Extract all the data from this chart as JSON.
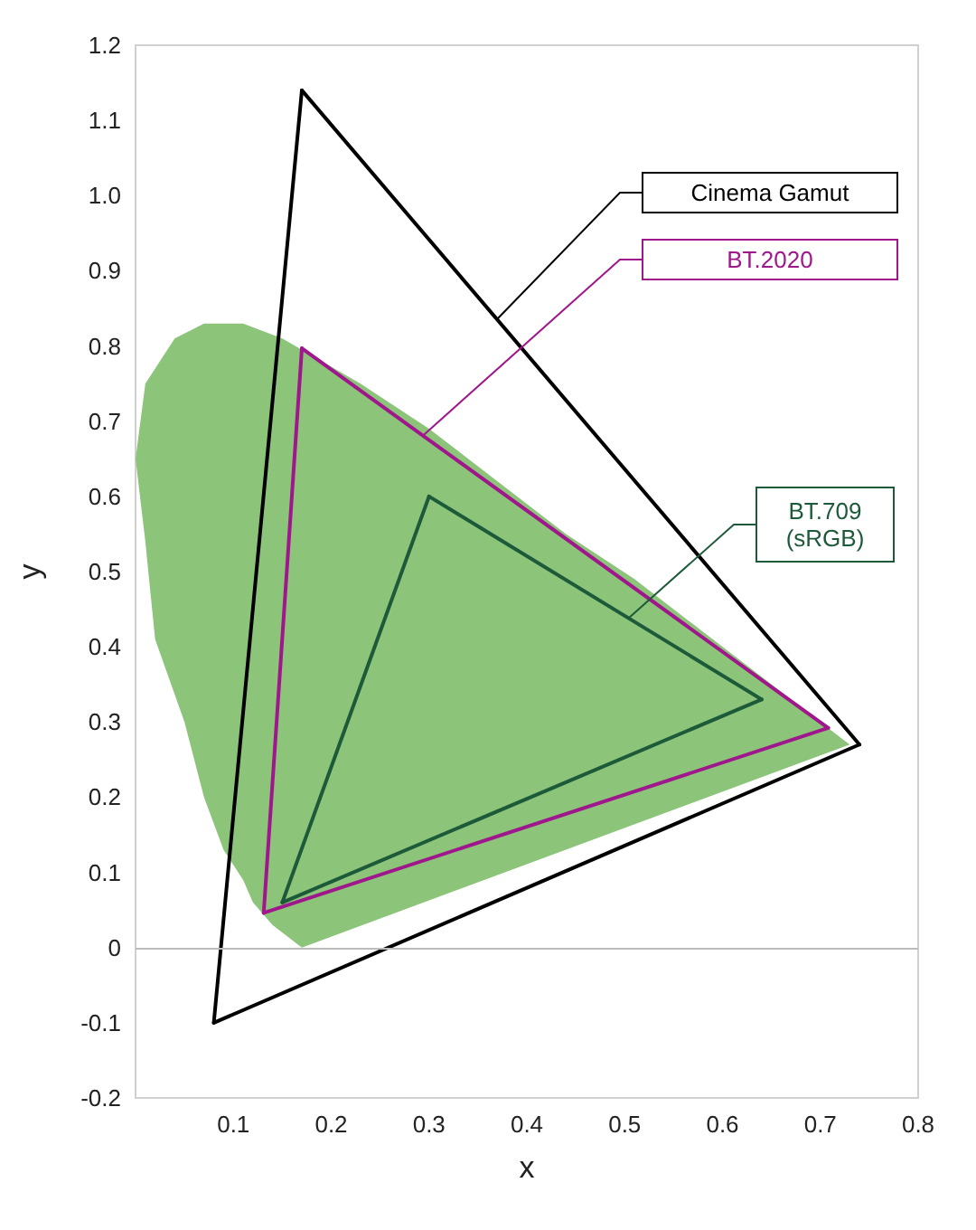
{
  "chart_data": {
    "type": "line",
    "xlabel": "x",
    "ylabel": "y",
    "xlim": [
      0,
      0.8
    ],
    "ylim": [
      -0.2,
      1.2
    ],
    "xticks": [
      0.1,
      0.2,
      0.3,
      0.4,
      0.5,
      0.6,
      0.7,
      0.8
    ],
    "yticks": [
      -0.2,
      -0.1,
      0,
      0.1,
      0.2,
      0.3,
      0.4,
      0.5,
      0.6,
      0.7,
      0.8,
      0.9,
      {
        "value": 1,
        "label": "1.0"
      },
      1.1,
      1.2
    ],
    "grid": false,
    "legend": false,
    "marker": "none",
    "line_style": "solid",
    "ref_lines": [
      {
        "axis": "y",
        "value": 0,
        "color": "#bbbbbb"
      }
    ],
    "series": [
      {
        "type": "area",
        "color": "#8cc47a",
        "x": [
          0.17,
          0.14,
          0.12,
          0.11,
          0.09,
          0.07,
          0.05,
          0.02,
          0.01,
          0,
          0.01,
          0.04,
          0.07,
          0.11,
          0.15,
          0.23,
          0.3,
          0.37,
          0.44,
          0.51,
          0.58,
          0.63,
          0.69,
          0.72,
          0.73
        ],
        "values": [
          0,
          0.03,
          0.06,
          0.09,
          0.13,
          0.2,
          0.3,
          0.41,
          0.54,
          0.65,
          0.75,
          0.81,
          0.83,
          0.83,
          0.81,
          0.75,
          0.69,
          0.62,
          0.55,
          0.49,
          0.42,
          0.37,
          0.31,
          0.28,
          0.27
        ]
      },
      {
        "name": "Cinema Gamut",
        "color": "#000000",
        "x": [
          0.17,
          0.74
        ],
        "values": [
          1.14,
          0.27
        ]
      },
      {
        "color": "#000000",
        "x": [
          0.08,
          0.74
        ],
        "values": [
          -0.1,
          0.27
        ]
      },
      {
        "color": "#000000",
        "x": [
          0.08,
          0.17
        ],
        "values": [
          -0.1,
          1.14
        ]
      },
      {
        "name": "BT.2020",
        "color": "#a0168c",
        "x": [
          0.17,
          0.708
        ],
        "values": [
          0.797,
          0.292
        ]
      },
      {
        "color": "#a0168c",
        "x": [
          0.131,
          0.708
        ],
        "values": [
          0.046,
          0.292
        ]
      },
      {
        "color": "#a0168c",
        "x": [
          0.131,
          0.17
        ],
        "values": [
          0.046,
          0.797
        ]
      },
      {
        "name": "BT.709 (sRGB)",
        "color": "#1c5a3a",
        "x": [
          0.3,
          0.64
        ],
        "values": [
          0.6,
          0.33
        ]
      },
      {
        "color": "#1c5a3a",
        "x": [
          0.15,
          0.64
        ],
        "values": [
          0.06,
          0.33
        ]
      },
      {
        "color": "#1c5a3a",
        "x": [
          0.15,
          0.3
        ],
        "values": [
          0.06,
          0.6
        ]
      }
    ]
  }
}
